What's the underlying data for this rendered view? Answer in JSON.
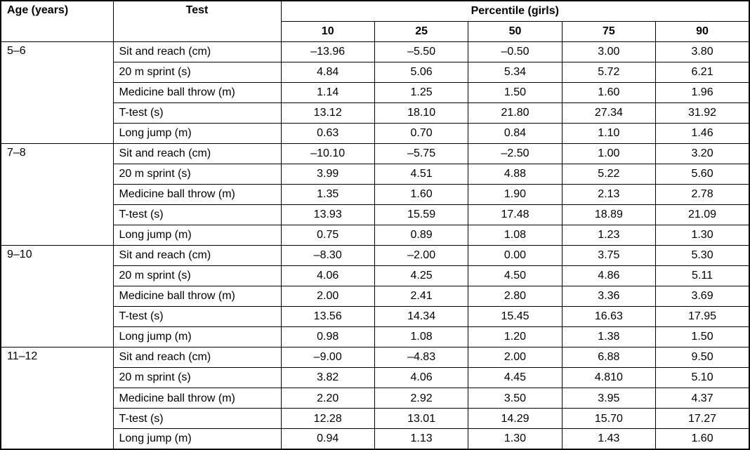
{
  "colors": {
    "border": "#000000",
    "text": "#000000",
    "background": "#ffffff"
  },
  "table": {
    "headers": {
      "age": "Age (years)",
      "test": "Test",
      "percentile_group": "Percentile (girls)",
      "percentiles": [
        "10",
        "25",
        "50",
        "75",
        "90"
      ]
    },
    "groups": [
      {
        "age": "5–6",
        "rows": [
          {
            "test": "Sit and reach (cm)",
            "values": [
              "–13.96",
              "–5.50",
              "–0.50",
              "3.00",
              "3.80"
            ]
          },
          {
            "test": "20 m sprint (s)",
            "values": [
              "4.84",
              "5.06",
              "5.34",
              "5.72",
              "6.21"
            ]
          },
          {
            "test": "Medicine ball throw (m)",
            "values": [
              "1.14",
              "1.25",
              "1.50",
              "1.60",
              "1.96"
            ]
          },
          {
            "test": "T-test (s)",
            "values": [
              "13.12",
              "18.10",
              "21.80",
              "27.34",
              "31.92"
            ]
          },
          {
            "test": "Long jump (m)",
            "values": [
              "0.63",
              "0.70",
              "0.84",
              "1.10",
              "1.46"
            ]
          }
        ]
      },
      {
        "age": "7–8",
        "rows": [
          {
            "test": "Sit and reach (cm)",
            "values": [
              "–10.10",
              "–5.75",
              "–2.50",
              "1.00",
              "3.20"
            ]
          },
          {
            "test": "20 m sprint (s)",
            "values": [
              "3.99",
              "4.51",
              "4.88",
              "5.22",
              "5.60"
            ]
          },
          {
            "test": "Medicine ball throw (m)",
            "values": [
              "1.35",
              "1.60",
              "1.90",
              "2.13",
              "2.78"
            ]
          },
          {
            "test": "T-test (s)",
            "values": [
              "13.93",
              "15.59",
              "17.48",
              "18.89",
              "21.09"
            ]
          },
          {
            "test": "Long jump (m)",
            "values": [
              "0.75",
              "0.89",
              "1.08",
              "1.23",
              "1.30"
            ]
          }
        ]
      },
      {
        "age": "9–10",
        "rows": [
          {
            "test": "Sit and reach (cm)",
            "values": [
              "–8.30",
              "–2.00",
              "0.00",
              "3.75",
              "5.30"
            ]
          },
          {
            "test": "20 m sprint (s)",
            "values": [
              "4.06",
              "4.25",
              "4.50",
              "4.86",
              "5.11"
            ]
          },
          {
            "test": "Medicine ball throw (m)",
            "values": [
              "2.00",
              "2.41",
              "2.80",
              "3.36",
              "3.69"
            ]
          },
          {
            "test": "T-test (s)",
            "values": [
              "13.56",
              "14.34",
              "15.45",
              "16.63",
              "17.95"
            ]
          },
          {
            "test": "Long jump (m)",
            "values": [
              "0.98",
              "1.08",
              "1.20",
              "1.38",
              "1.50"
            ]
          }
        ]
      },
      {
        "age": "11–12",
        "rows": [
          {
            "test": "Sit and reach (cm)",
            "values": [
              "–9.00",
              "–4.83",
              "2.00",
              "6.88",
              "9.50"
            ]
          },
          {
            "test": "20 m sprint (s)",
            "values": [
              "3.82",
              "4.06",
              "4.45",
              "4.810",
              "5.10"
            ]
          },
          {
            "test": "Medicine ball throw (m)",
            "values": [
              "2.20",
              "2.92",
              "3.50",
              "3.95",
              "4.37"
            ]
          },
          {
            "test": "T-test (s)",
            "values": [
              "12.28",
              "13.01",
              "14.29",
              "15.70",
              "17.27"
            ]
          },
          {
            "test": "Long jump (m)",
            "values": [
              "0.94",
              "1.13",
              "1.30",
              "1.43",
              "1.60"
            ]
          }
        ]
      }
    ]
  }
}
